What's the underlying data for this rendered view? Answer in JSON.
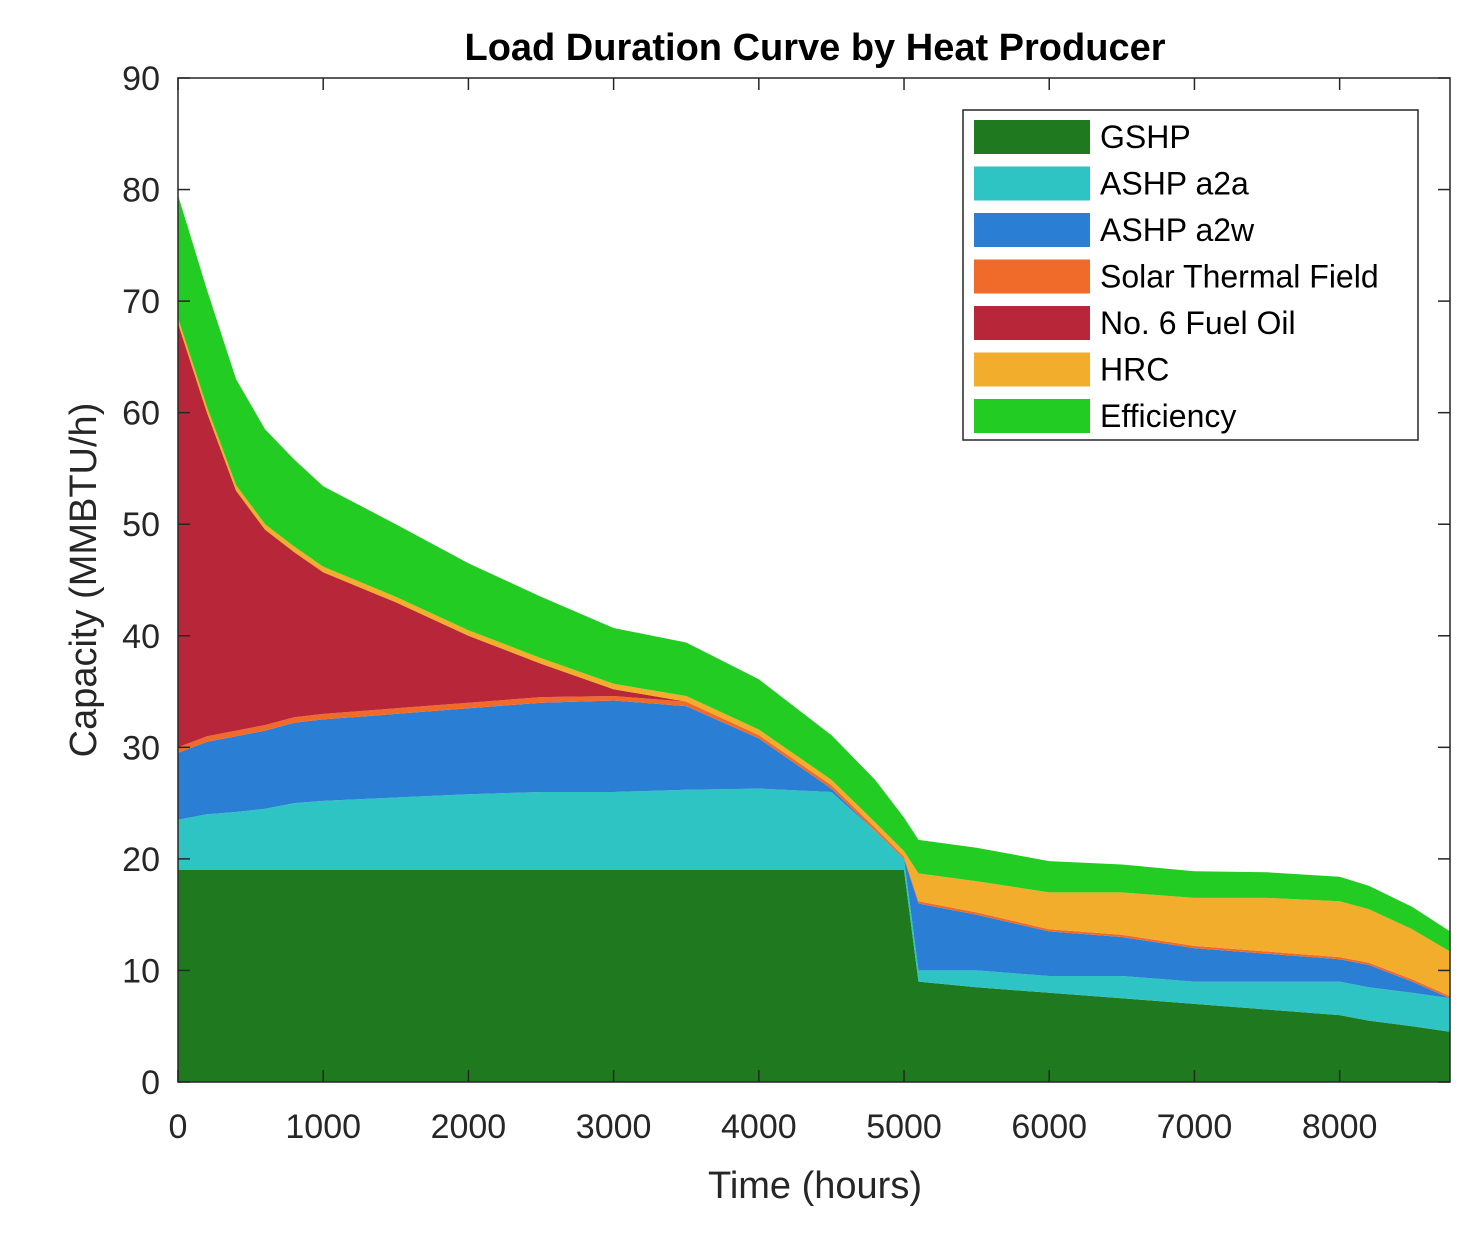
{
  "chart_data": {
    "type": "area",
    "stacked": true,
    "title": "Load Duration Curve by Heat Producer",
    "xlabel": "Time (hours)",
    "ylabel": "Capacity (MMBTU/h)",
    "xlim": [
      0,
      8760
    ],
    "ylim": [
      0,
      90
    ],
    "xticks": [
      0,
      1000,
      2000,
      3000,
      4000,
      5000,
      6000,
      7000,
      8000
    ],
    "yticks": [
      0,
      10,
      20,
      30,
      40,
      50,
      60,
      70,
      80,
      90
    ],
    "grid": false,
    "legend_position": "top-right",
    "x": [
      0,
      200,
      400,
      600,
      800,
      1000,
      1500,
      2000,
      2500,
      3000,
      3500,
      4000,
      4500,
      4800,
      5000,
      5100,
      5500,
      6000,
      6500,
      7000,
      7500,
      8000,
      8200,
      8500,
      8760
    ],
    "series": [
      {
        "name": "GSHP",
        "color": "#1f7a1f",
        "values": [
          19,
          19,
          19,
          19,
          19,
          19,
          19,
          19,
          19,
          19,
          19,
          19,
          19,
          19,
          19,
          9,
          8.5,
          8,
          7.5,
          7,
          6.5,
          6,
          5.5,
          5,
          4.5
        ]
      },
      {
        "name": "ASHP a2a",
        "color": "#2ec4c4",
        "values": [
          4.5,
          5,
          5.2,
          5.5,
          6,
          6.2,
          6.5,
          6.8,
          7,
          7,
          7.2,
          7.3,
          7,
          3.5,
          1,
          1,
          1.5,
          1.5,
          2,
          2,
          2.5,
          3,
          3,
          3,
          3
        ]
      },
      {
        "name": "ASHP a2w",
        "color": "#2a7fd4",
        "values": [
          6,
          6.5,
          6.8,
          7,
          7.2,
          7.3,
          7.5,
          7.7,
          8,
          8.2,
          7.5,
          4.5,
          0.3,
          0,
          0,
          6,
          5,
          4,
          3.5,
          3,
          2.5,
          2,
          2,
          1,
          0
        ]
      },
      {
        "name": "Solar Thermal Field",
        "color": "#f06a2a",
        "values": [
          0.5,
          0.5,
          0.5,
          0.5,
          0.5,
          0.5,
          0.5,
          0.5,
          0.5,
          0.4,
          0.4,
          0.3,
          0.3,
          0.3,
          0.2,
          0.2,
          0.2,
          0.2,
          0.2,
          0.2,
          0.2,
          0.2,
          0.2,
          0.2,
          0.2
        ]
      },
      {
        "name": "No. 6 Fuel Oil",
        "color": "#b8263a",
        "values": [
          38,
          29,
          21.5,
          17.5,
          14.8,
          12.7,
          9.5,
          6,
          3,
          0.6,
          0,
          0,
          0,
          0,
          0,
          0,
          0,
          0,
          0,
          0,
          0,
          0,
          0,
          0,
          0
        ]
      },
      {
        "name": "HRC",
        "color": "#f2ad2c",
        "values": [
          0.5,
          0.5,
          0.5,
          0.5,
          0.5,
          0.5,
          0.5,
          0.5,
          0.5,
          0.5,
          0.5,
          0.5,
          0.5,
          0.5,
          0.5,
          2.5,
          2.8,
          3.3,
          3.8,
          4.3,
          4.8,
          5,
          4.8,
          4.5,
          4
        ]
      },
      {
        "name": "Efficiency",
        "color": "#22cc22",
        "values": [
          11,
          10.5,
          9.5,
          8.5,
          7.8,
          7.2,
          6.5,
          6,
          5.5,
          5,
          4.8,
          4.5,
          4,
          3.8,
          3,
          3,
          3,
          2.8,
          2.5,
          2.4,
          2.3,
          2.2,
          2.1,
          2,
          1.8
        ]
      }
    ]
  }
}
